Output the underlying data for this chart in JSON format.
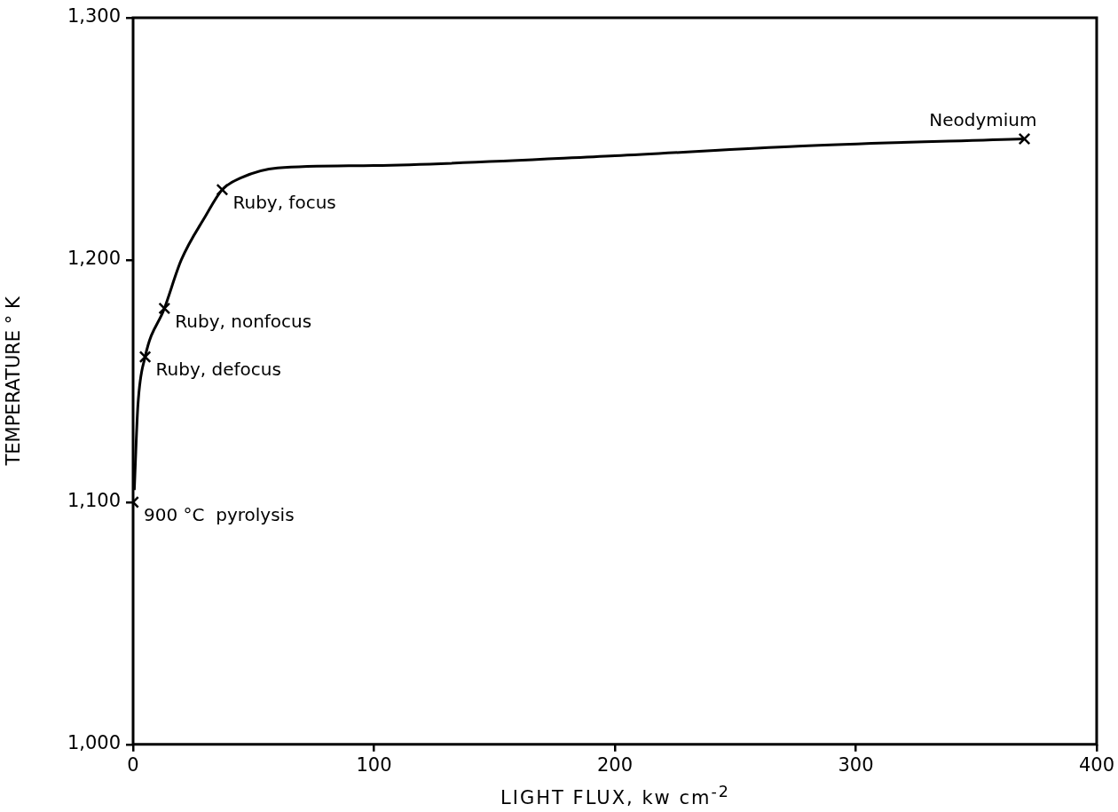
{
  "chart_data": {
    "type": "line",
    "xlabel": "LIGHT FLUX, kw cm$^{-2}$",
    "ylabel": "TEMPERATURE ° K",
    "xlim": [
      0,
      400
    ],
    "xticks": [
      0,
      100,
      200,
      300,
      400
    ],
    "ylim": [
      1000,
      1300
    ],
    "yticks": [
      {
        "value": 1000,
        "label": "1,000"
      },
      {
        "value": 1100,
        "label": "1,100"
      },
      {
        "value": 1200,
        "label": "1,200"
      },
      {
        "value": 1300,
        "label": "1,300"
      }
    ],
    "legend": false,
    "series": [
      {
        "color": "#000000",
        "marker": "none",
        "line_style": "solid",
        "x": [
          0.5,
          2,
          5,
          13,
          20,
          30,
          37,
          45,
          60,
          100,
          200,
          276,
          370
        ],
        "values": [
          1105,
          1140,
          1160,
          1180,
          1200,
          1218,
          1229,
          1234,
          1238,
          1239,
          1243,
          1247,
          1250
        ]
      },
      {
        "type": "scatter",
        "color": "#000000",
        "marker": "cross",
        "x": [
          0,
          5,
          13,
          37,
          370
        ],
        "values": [
          1100,
          1160,
          1180,
          1229,
          1250
        ]
      }
    ],
    "annotations": [
      {
        "text": "900 °C  pyrolysis",
        "x": 0,
        "y": 1100
      },
      {
        "text": "Ruby, defocus",
        "x": 5,
        "y": 1160
      },
      {
        "text": "Ruby, nonfocus",
        "x": 13,
        "y": 1180
      },
      {
        "text": "Ruby, focus",
        "x": 37,
        "y": 1229
      },
      {
        "text": "Neodymium",
        "x": 370,
        "y": 1250
      }
    ]
  }
}
